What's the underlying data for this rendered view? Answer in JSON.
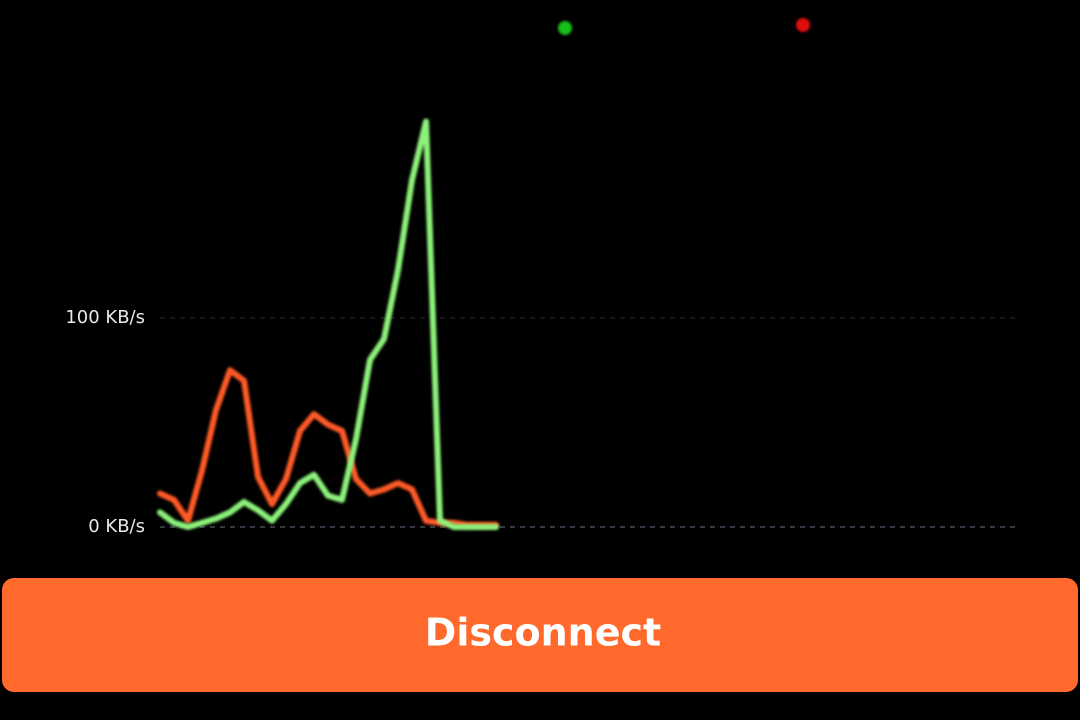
{
  "chart_data": {
    "type": "line",
    "ylim": [
      0,
      200
    ],
    "yticks": [
      {
        "value": 0,
        "label": "0 KB/s"
      },
      {
        "value": 100,
        "label": "100 KB/s"
      }
    ],
    "grid": true,
    "series": [
      {
        "color": "#ff5a28",
        "values": [
          16,
          13,
          3,
          27,
          56,
          75,
          70,
          24,
          11,
          23,
          46,
          54,
          49,
          46,
          23,
          16,
          18,
          21,
          18,
          3,
          2,
          2,
          1,
          1,
          1
        ]
      },
      {
        "color": "#8cf27a",
        "values": [
          7,
          2,
          0,
          2,
          4,
          7,
          12,
          8,
          3,
          11,
          21,
          25,
          15,
          13,
          42,
          80,
          90,
          123,
          166,
          194,
          3,
          0,
          0,
          0,
          0
        ]
      }
    ]
  },
  "button": {
    "label": "Disconnect"
  }
}
